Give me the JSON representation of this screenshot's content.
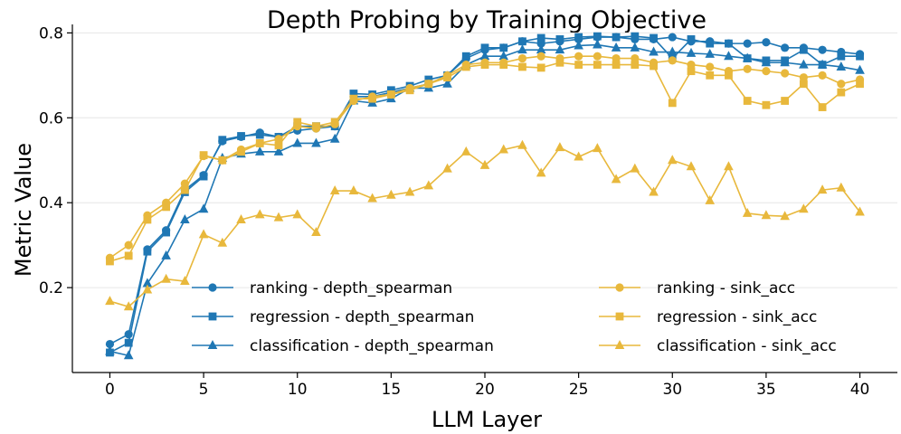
{
  "chart_data": {
    "type": "line",
    "title": "Depth Probing by Training Objective",
    "xlabel": "LLM Layer",
    "ylabel": "Metric Value",
    "xlim": [
      -2,
      42
    ],
    "ylim": [
      0,
      0.82
    ],
    "xticks": [
      0,
      5,
      10,
      15,
      20,
      25,
      30,
      35,
      40
    ],
    "yticks": [
      0.2,
      0.4,
      0.6,
      0.8
    ],
    "grid": "horizontal",
    "legend_placement": "lower-center",
    "x": [
      0,
      1,
      2,
      3,
      4,
      5,
      6,
      7,
      8,
      9,
      10,
      11,
      12,
      13,
      14,
      15,
      16,
      17,
      18,
      19,
      20,
      21,
      22,
      23,
      24,
      25,
      26,
      27,
      28,
      29,
      30,
      31,
      32,
      33,
      34,
      35,
      36,
      37,
      38,
      39,
      40
    ],
    "series": [
      {
        "name": "ranking - depth_spearman",
        "color": "#1f77b4",
        "marker": "circle",
        "values": [
          0.067,
          0.09,
          0.29,
          0.335,
          0.43,
          0.465,
          0.545,
          0.555,
          0.565,
          0.555,
          0.57,
          0.575,
          0.58,
          0.65,
          0.65,
          0.66,
          0.67,
          0.68,
          0.7,
          0.74,
          0.76,
          0.765,
          0.78,
          0.775,
          0.78,
          0.785,
          0.79,
          0.79,
          0.785,
          0.785,
          0.79,
          0.78,
          0.78,
          0.775,
          0.775,
          0.778,
          0.765,
          0.765,
          0.76,
          0.755,
          0.75
        ]
      },
      {
        "name": "regression - depth_spearman",
        "color": "#1f77b4",
        "marker": "square",
        "values": [
          0.047,
          0.07,
          0.285,
          0.33,
          0.425,
          0.462,
          0.548,
          0.557,
          0.56,
          0.555,
          0.58,
          0.58,
          0.58,
          0.657,
          0.655,
          0.665,
          0.675,
          0.69,
          0.7,
          0.745,
          0.765,
          0.765,
          0.78,
          0.788,
          0.785,
          0.79,
          0.792,
          0.79,
          0.792,
          0.788,
          0.74,
          0.785,
          0.775,
          0.775,
          0.74,
          0.735,
          0.735,
          0.76,
          0.725,
          0.745,
          0.745
        ]
      },
      {
        "name": "classification - depth_spearman",
        "color": "#1f77b4",
        "marker": "triangle",
        "values": [
          0.05,
          0.04,
          0.21,
          0.275,
          0.36,
          0.385,
          0.505,
          0.515,
          0.52,
          0.52,
          0.54,
          0.54,
          0.55,
          0.64,
          0.635,
          0.645,
          0.67,
          0.67,
          0.68,
          0.725,
          0.745,
          0.745,
          0.76,
          0.76,
          0.76,
          0.77,
          0.772,
          0.765,
          0.765,
          0.755,
          0.755,
          0.752,
          0.75,
          0.745,
          0.74,
          0.73,
          0.73,
          0.725,
          0.725,
          0.72,
          0.712
        ]
      },
      {
        "name": "ranking - sink_acc",
        "color": "#e8b83c",
        "marker": "circle",
        "values": [
          0.27,
          0.3,
          0.37,
          0.4,
          0.445,
          0.51,
          0.5,
          0.525,
          0.54,
          0.55,
          0.58,
          0.575,
          0.585,
          0.64,
          0.65,
          0.655,
          0.67,
          0.68,
          0.7,
          0.725,
          0.73,
          0.73,
          0.74,
          0.745,
          0.74,
          0.745,
          0.745,
          0.74,
          0.74,
          0.73,
          0.735,
          0.725,
          0.72,
          0.71,
          0.715,
          0.71,
          0.705,
          0.695,
          0.7,
          0.68,
          0.69
        ]
      },
      {
        "name": "regression - sink_acc",
        "color": "#e8b83c",
        "marker": "square",
        "values": [
          0.262,
          0.275,
          0.36,
          0.39,
          0.43,
          0.512,
          0.5,
          0.52,
          0.54,
          0.535,
          0.59,
          0.58,
          0.59,
          0.645,
          0.645,
          0.655,
          0.665,
          0.68,
          0.695,
          0.72,
          0.725,
          0.725,
          0.72,
          0.718,
          0.73,
          0.725,
          0.725,
          0.725,
          0.725,
          0.722,
          0.635,
          0.71,
          0.7,
          0.7,
          0.64,
          0.63,
          0.64,
          0.68,
          0.625,
          0.66,
          0.68
        ]
      },
      {
        "name": "classification - sink_acc",
        "color": "#e8b83c",
        "marker": "triangle",
        "values": [
          0.168,
          0.155,
          0.195,
          0.22,
          0.215,
          0.325,
          0.305,
          0.36,
          0.372,
          0.365,
          0.372,
          0.33,
          0.428,
          0.428,
          0.41,
          0.418,
          0.425,
          0.44,
          0.48,
          0.52,
          0.488,
          0.525,
          0.535,
          0.47,
          0.53,
          0.508,
          0.528,
          0.455,
          0.48,
          0.425,
          0.5,
          0.485,
          0.405,
          0.485,
          0.375,
          0.37,
          0.368,
          0.385,
          0.43,
          0.435,
          0.378
        ]
      }
    ]
  }
}
